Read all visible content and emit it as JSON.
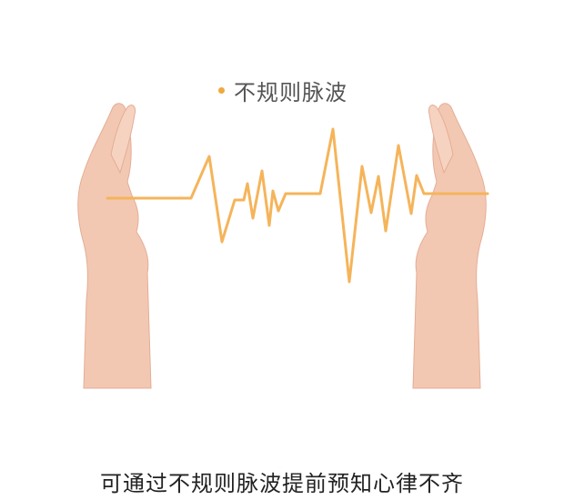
{
  "header": {
    "title": "不规则脉波"
  },
  "footer": {
    "caption": "可通过不规则脉波提前预知心律不齐"
  },
  "illustration": {
    "left_hand": "hand-illustration",
    "right_hand": "hand-illustration",
    "wave_color": "#f5b45a",
    "skin_color": "#f3c8b2"
  },
  "accent_color": "#f0a83f"
}
